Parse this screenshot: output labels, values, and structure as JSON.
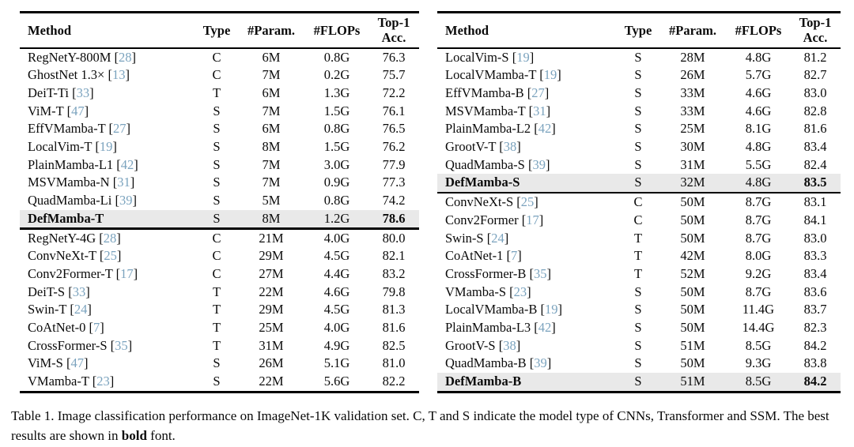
{
  "colors": {
    "citation": "#7ba3be",
    "highlight_row": "#e9e9e9",
    "rule": "#000000",
    "background": "#ffffff"
  },
  "caption": {
    "prefix": "Table 1. Image classification performance on ImageNet-1K validation set. C, T and S indicate the model type of CNNs, Transformer and SSM. The best results are shown in ",
    "bold_word": "bold",
    "suffix": " font."
  },
  "tables": [
    {
      "name": "left",
      "headers": {
        "method": "Method",
        "type": "Type",
        "params": "#Param.",
        "flops": "#FLOPs",
        "acc": "Top-1 Acc."
      },
      "sections": [
        {
          "rows": [
            {
              "method": "RegNetY-800M",
              "cite": "28",
              "type": "C",
              "params": "6M",
              "flops": "0.8G",
              "acc": "76.3"
            },
            {
              "method": "GhostNet 1.3×",
              "cite": "13",
              "type": "C",
              "params": "7M",
              "flops": "0.2G",
              "acc": "75.7"
            },
            {
              "method": "DeiT-Ti",
              "cite": "33",
              "type": "T",
              "params": "6M",
              "flops": "1.3G",
              "acc": "72.2"
            },
            {
              "method": "ViM-T",
              "cite": "47",
              "type": "S",
              "params": "7M",
              "flops": "1.5G",
              "acc": "76.1"
            },
            {
              "method": "EffVMamba-T",
              "cite": "27",
              "type": "S",
              "params": "6M",
              "flops": "0.8G",
              "acc": "76.5"
            },
            {
              "method": "LocalVim-T",
              "cite": "19",
              "type": "S",
              "params": "8M",
              "flops": "1.5G",
              "acc": "76.2"
            },
            {
              "method": "PlainMamba-L1",
              "cite": "42",
              "type": "S",
              "params": "7M",
              "flops": "3.0G",
              "acc": "77.9"
            },
            {
              "method": "MSVMamba-N",
              "cite": "31",
              "type": "S",
              "params": "7M",
              "flops": "0.9G",
              "acc": "77.3"
            },
            {
              "method": "QuadMamba-Li",
              "cite": "39",
              "type": "S",
              "params": "5M",
              "flops": "0.8G",
              "acc": "74.2"
            },
            {
              "method": "DefMamba-T",
              "type": "S",
              "params": "8M",
              "flops": "1.2G",
              "acc": "78.6",
              "highlight": true,
              "bold": true
            }
          ]
        },
        {
          "rows": [
            {
              "method": "RegNetY-4G",
              "cite": "28",
              "type": "C",
              "params": "21M",
              "flops": "4.0G",
              "acc": "80.0"
            },
            {
              "method": "ConvNeXt-T",
              "cite": "25",
              "type": "C",
              "params": "29M",
              "flops": "4.5G",
              "acc": "82.1"
            },
            {
              "method": "Conv2Former-T",
              "cite": "17",
              "type": "C",
              "params": "27M",
              "flops": "4.4G",
              "acc": "83.2"
            },
            {
              "method": "DeiT-S",
              "cite": "33",
              "type": "T",
              "params": "22M",
              "flops": "4.6G",
              "acc": "79.8"
            },
            {
              "method": "Swin-T",
              "cite": "24",
              "type": "T",
              "params": "29M",
              "flops": "4.5G",
              "acc": "81.3"
            },
            {
              "method": "CoAtNet-0",
              "cite": "7",
              "type": "T",
              "params": "25M",
              "flops": "4.0G",
              "acc": "81.6"
            },
            {
              "method": "CrossFormer-S",
              "cite": "35",
              "type": "T",
              "params": "31M",
              "flops": "4.9G",
              "acc": "82.5"
            },
            {
              "method": "ViM-S",
              "cite": "47",
              "type": "S",
              "params": "26M",
              "flops": "5.1G",
              "acc": "81.0"
            },
            {
              "method": "VMamba-T",
              "cite": "23",
              "type": "S",
              "params": "22M",
              "flops": "5.6G",
              "acc": "82.2"
            }
          ]
        }
      ]
    },
    {
      "name": "right",
      "headers": {
        "method": "Method",
        "type": "Type",
        "params": "#Param.",
        "flops": "#FLOPs",
        "acc": "Top-1 Acc."
      },
      "sections": [
        {
          "rows": [
            {
              "method": "LocalVim-S",
              "cite": "19",
              "type": "S",
              "params": "28M",
              "flops": "4.8G",
              "acc": "81.2"
            },
            {
              "method": "LocalVMamba-T",
              "cite": "19",
              "type": "S",
              "params": "26M",
              "flops": "5.7G",
              "acc": "82.7"
            },
            {
              "method": "EffVMamba-B",
              "cite": "27",
              "type": "S",
              "params": "33M",
              "flops": "4.6G",
              "acc": "83.0"
            },
            {
              "method": "MSVMamba-T",
              "cite": "31",
              "type": "S",
              "params": "33M",
              "flops": "4.6G",
              "acc": "82.8"
            },
            {
              "method": "PlainMamba-L2",
              "cite": "42",
              "type": "S",
              "params": "25M",
              "flops": "8.1G",
              "acc": "81.6"
            },
            {
              "method": "GrootV-T",
              "cite": "38",
              "type": "S",
              "params": "30M",
              "flops": "4.8G",
              "acc": "83.4"
            },
            {
              "method": "QuadMamba-S",
              "cite": "39",
              "type": "S",
              "params": "31M",
              "flops": "5.5G",
              "acc": "82.4"
            },
            {
              "method": "DefMamba-S",
              "type": "S",
              "params": "32M",
              "flops": "4.8G",
              "acc": "83.5",
              "highlight": true,
              "bold": true
            }
          ]
        },
        {
          "rows": [
            {
              "method": "ConvNeXt-S",
              "cite": "25",
              "type": "C",
              "params": "50M",
              "flops": "8.7G",
              "acc": "83.1"
            },
            {
              "method": "Conv2Former",
              "cite": "17",
              "type": "C",
              "params": "50M",
              "flops": "8.7G",
              "acc": "84.1"
            },
            {
              "method": "Swin-S",
              "cite": "24",
              "type": "T",
              "params": "50M",
              "flops": "8.7G",
              "acc": "83.0"
            },
            {
              "method": "CoAtNet-1",
              "cite": "7",
              "type": "T",
              "params": "42M",
              "flops": "8.0G",
              "acc": "83.3"
            },
            {
              "method": "CrossFormer-B",
              "cite": "35",
              "type": "T",
              "params": "52M",
              "flops": "9.2G",
              "acc": "83.4"
            },
            {
              "method": "VMamba-S",
              "cite": "23",
              "type": "S",
              "params": "50M",
              "flops": "8.7G",
              "acc": "83.6"
            },
            {
              "method": "LocalVMamba-B",
              "cite": "19",
              "type": "S",
              "params": "50M",
              "flops": "11.4G",
              "acc": "83.7"
            },
            {
              "method": "PlainMamba-L3",
              "cite": "42",
              "type": "S",
              "params": "50M",
              "flops": "14.4G",
              "acc": "82.3"
            },
            {
              "method": "GrootV-S",
              "cite": "38",
              "type": "S",
              "params": "51M",
              "flops": "8.5G",
              "acc": "84.2"
            },
            {
              "method": "QuadMamba-B",
              "cite": "39",
              "type": "S",
              "params": "50M",
              "flops": "9.3G",
              "acc": "83.8"
            },
            {
              "method": "DefMamba-B",
              "type": "S",
              "params": "51M",
              "flops": "8.5G",
              "acc": "84.2",
              "highlight": true,
              "bold": true
            }
          ]
        }
      ]
    }
  ]
}
